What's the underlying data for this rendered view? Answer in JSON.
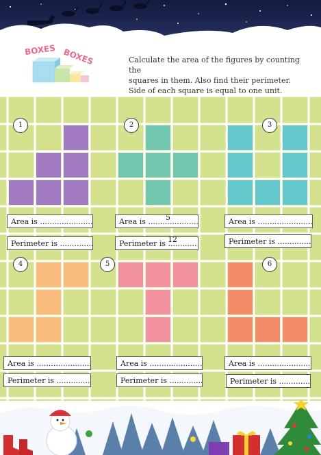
{
  "logo": {
    "word1": "BOXES",
    "word2": "BOXES"
  },
  "instructions": {
    "line1": "Calculate the area of the figures by counting the",
    "line2": "squares in them. Also find their perimeter.",
    "line3": "Side of each square is equal to one unit."
  },
  "colors": {
    "grid_bg": "#d4e28e",
    "grid_lines": "#ffffff",
    "figure1": "#a17bc2",
    "figure2": "#72c8ae",
    "figure3": "#62c8cb",
    "figure4": "#fbbd7e",
    "figure5": "#f1909f",
    "figure6": "#f48c6a",
    "night_sky": "#1d2450"
  },
  "figures": [
    {
      "number": "1",
      "cells": [
        [
          0,
          2
        ],
        [
          1,
          1
        ],
        [
          1,
          2
        ],
        [
          2,
          0
        ],
        [
          2,
          1
        ],
        [
          2,
          2
        ]
      ],
      "area_label": "Area is ..........................",
      "perimeter_label": "Perimeter is ..................",
      "area_answer": "",
      "perimeter_answer": ""
    },
    {
      "number": "2",
      "cells": [
        [
          0,
          1
        ],
        [
          1,
          0
        ],
        [
          1,
          1
        ],
        [
          1,
          2
        ],
        [
          2,
          1
        ]
      ],
      "area_label": "Area is ..............................",
      "perimeter_label": "Perimeter is .........................",
      "area_answer": "5",
      "perimeter_answer": "12"
    },
    {
      "number": "3",
      "cells": [
        [
          0,
          0
        ],
        [
          0,
          2
        ],
        [
          1,
          0
        ],
        [
          1,
          2
        ],
        [
          2,
          0
        ],
        [
          2,
          1
        ],
        [
          2,
          2
        ]
      ],
      "area_label": "Area is ..........................",
      "perimeter_label": "Perimeter is ..................",
      "area_answer": "",
      "perimeter_answer": ""
    },
    {
      "number": "4",
      "cells": [
        [
          0,
          1
        ],
        [
          0,
          2
        ],
        [
          1,
          1
        ],
        [
          2,
          0
        ],
        [
          2,
          1
        ]
      ],
      "area_label": "Area is ..........................",
      "perimeter_label": "Perimeter is ..................",
      "area_answer": "",
      "perimeter_answer": ""
    },
    {
      "number": "5",
      "cells": [
        [
          0,
          0
        ],
        [
          0,
          1
        ],
        [
          0,
          2
        ],
        [
          1,
          1
        ],
        [
          2,
          1
        ]
      ],
      "area_label": "Area is ..........................",
      "perimeter_label": "Perimeter is ..................",
      "area_answer": "",
      "perimeter_answer": ""
    },
    {
      "number": "6",
      "cells": [
        [
          0,
          0
        ],
        [
          1,
          0
        ],
        [
          2,
          0
        ],
        [
          2,
          1
        ],
        [
          2,
          2
        ]
      ],
      "area_label": "Area is ..........................",
      "perimeter_label": "Perimeter is ..................",
      "area_answer": "",
      "perimeter_answer": ""
    }
  ],
  "decorations": {
    "header_art": "night-sky-with-reindeer-and-sleigh",
    "footer_art": "snowman-christmas-tree-gifts"
  }
}
